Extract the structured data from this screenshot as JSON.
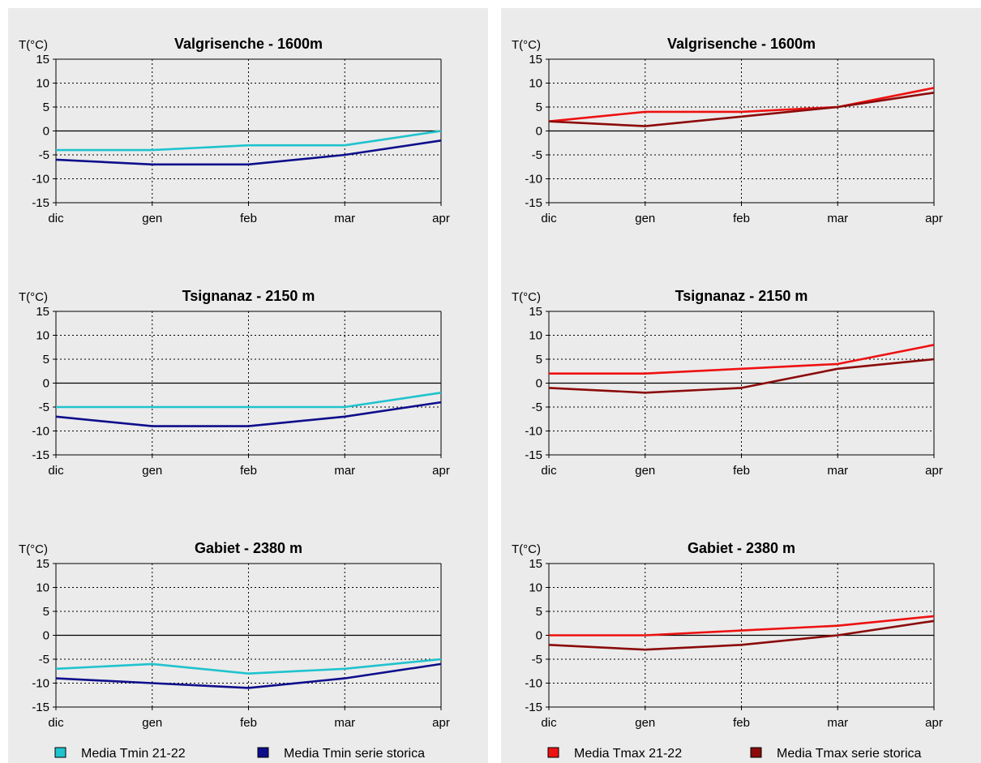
{
  "chart_data": [
    {
      "type": "line",
      "panel": "left",
      "row": 0,
      "title": "Valgrisenche - 1600m",
      "ylabel": "T(°C)",
      "categories": [
        "dic",
        "gen",
        "feb",
        "mar",
        "apr"
      ],
      "ylim": [
        -15,
        15
      ],
      "yticks": [
        15,
        10,
        5,
        0,
        -5,
        -10,
        -15
      ],
      "grid": true,
      "series": [
        {
          "name": "Media Tmin 21-22",
          "color": "#1fc3cd",
          "values": [
            -4,
            -4,
            -3,
            -3,
            0
          ]
        },
        {
          "name": "Media Tmin serie storica",
          "color": "#0e0e8c",
          "values": [
            -6,
            -7,
            -7,
            -5,
            -2
          ]
        }
      ]
    },
    {
      "type": "line",
      "panel": "left",
      "row": 1,
      "title": "Tsignanaz - 2150 m",
      "ylabel": "T(°C)",
      "categories": [
        "dic",
        "gen",
        "feb",
        "mar",
        "apr"
      ],
      "ylim": [
        -15,
        15
      ],
      "yticks": [
        15,
        10,
        5,
        0,
        -5,
        -10,
        -15
      ],
      "grid": true,
      "series": [
        {
          "name": "Media Tmin 21-22",
          "color": "#1fc3cd",
          "values": [
            -5,
            -5,
            -5,
            -5,
            -2
          ]
        },
        {
          "name": "Media Tmin serie storica",
          "color": "#0e0e8c",
          "values": [
            -7,
            -9,
            -9,
            -7,
            -4
          ]
        }
      ]
    },
    {
      "type": "line",
      "panel": "left",
      "row": 2,
      "title": "Gabiet - 2380 m",
      "ylabel": "T(°C)",
      "categories": [
        "dic",
        "gen",
        "feb",
        "mar",
        "apr"
      ],
      "ylim": [
        -15,
        15
      ],
      "yticks": [
        15,
        10,
        5,
        0,
        -5,
        -10,
        -15
      ],
      "grid": true,
      "series": [
        {
          "name": "Media Tmin 21-22",
          "color": "#1fc3cd",
          "values": [
            -7,
            -6,
            -8,
            -7,
            -5
          ]
        },
        {
          "name": "Media Tmin serie storica",
          "color": "#0e0e8c",
          "values": [
            -9,
            -10,
            -11,
            -9,
            -6
          ]
        }
      ]
    },
    {
      "type": "line",
      "panel": "right",
      "row": 0,
      "title": "Valgrisenche - 1600m",
      "ylabel": "T(°C)",
      "categories": [
        "dic",
        "gen",
        "feb",
        "mar",
        "apr"
      ],
      "ylim": [
        -15,
        15
      ],
      "yticks": [
        15,
        10,
        5,
        0,
        -5,
        -10,
        -15
      ],
      "grid": true,
      "series": [
        {
          "name": "Media Tmax 21-22",
          "color": "#ee1111",
          "values": [
            2,
            4,
            4,
            5,
            9
          ]
        },
        {
          "name": "Media Tmax serie storica",
          "color": "#8b0a0a",
          "values": [
            2,
            1,
            3,
            5,
            8
          ]
        }
      ]
    },
    {
      "type": "line",
      "panel": "right",
      "row": 1,
      "title": "Tsignanaz - 2150 m",
      "ylabel": "T(°C)",
      "categories": [
        "dic",
        "gen",
        "feb",
        "mar",
        "apr"
      ],
      "ylim": [
        -15,
        15
      ],
      "yticks": [
        15,
        10,
        5,
        0,
        -5,
        -10,
        -15
      ],
      "grid": true,
      "series": [
        {
          "name": "Media Tmax 21-22",
          "color": "#ee1111",
          "values": [
            2,
            2,
            3,
            4,
            8
          ]
        },
        {
          "name": "Media Tmax serie storica",
          "color": "#8b0a0a",
          "values": [
            -1,
            -2,
            -1,
            3,
            5
          ]
        }
      ]
    },
    {
      "type": "line",
      "panel": "right",
      "row": 2,
      "title": "Gabiet - 2380 m",
      "ylabel": "T(°C)",
      "categories": [
        "dic",
        "gen",
        "feb",
        "mar",
        "apr"
      ],
      "ylim": [
        -15,
        15
      ],
      "yticks": [
        15,
        10,
        5,
        0,
        -5,
        -10,
        -15
      ],
      "grid": true,
      "series": [
        {
          "name": "Media Tmax 21-22",
          "color": "#ee1111",
          "values": [
            0,
            0,
            1,
            2,
            4
          ]
        },
        {
          "name": "Media Tmax serie storica",
          "color": "#8b0a0a",
          "values": [
            -2,
            -3,
            -2,
            0,
            3
          ]
        }
      ]
    }
  ],
  "legends": {
    "left": [
      {
        "label": "Media Tmin 21-22",
        "color": "#1fc3cd"
      },
      {
        "label": "Media Tmin serie storica",
        "color": "#0e0e8c"
      }
    ],
    "right": [
      {
        "label": "Media Tmax 21-22",
        "color": "#ee1111"
      },
      {
        "label": "Media Tmax serie storica",
        "color": "#8b0a0a"
      }
    ]
  }
}
